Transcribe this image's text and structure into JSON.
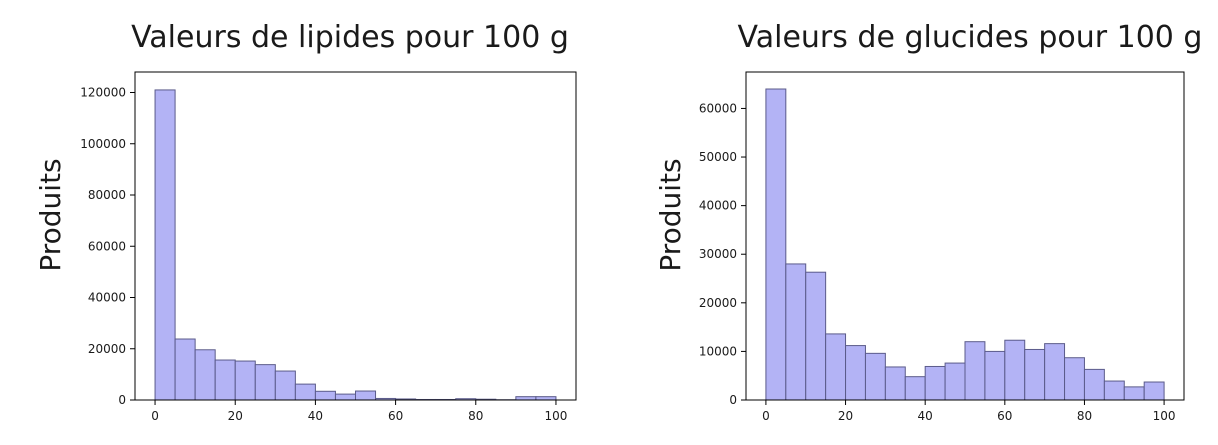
{
  "chart_data": [
    {
      "type": "bar",
      "title": "Valeurs de lipides pour 100 g",
      "xlabel": "",
      "ylabel": "Produits",
      "bin_width": 5,
      "x": [
        0,
        5,
        10,
        15,
        20,
        25,
        30,
        35,
        40,
        45,
        50,
        55,
        60,
        65,
        70,
        75,
        80,
        85,
        90,
        95
      ],
      "values": [
        121000,
        23800,
        19600,
        15600,
        15200,
        13800,
        11300,
        6200,
        3400,
        2300,
        3500,
        600,
        400,
        200,
        200,
        500,
        300,
        100,
        1300,
        1300
      ],
      "xlim": [
        -5,
        105
      ],
      "ylim": [
        0,
        128000
      ],
      "xticks": [
        0,
        20,
        40,
        60,
        80,
        100
      ],
      "yticks": [
        0,
        20000,
        40000,
        60000,
        80000,
        100000,
        120000
      ],
      "grid": false,
      "colors": {
        "bar_fill": "#b3b3f5",
        "bar_edge": "#5b5b8a"
      }
    },
    {
      "type": "bar",
      "title": "Valeurs de glucides pour 100 g",
      "xlabel": "",
      "ylabel": "Produits",
      "bin_width": 5,
      "x": [
        0,
        5,
        10,
        15,
        20,
        25,
        30,
        35,
        40,
        45,
        50,
        55,
        60,
        65,
        70,
        75,
        80,
        85,
        90,
        95
      ],
      "values": [
        64000,
        28000,
        26300,
        13600,
        11200,
        9600,
        6800,
        4800,
        6900,
        7600,
        12000,
        10000,
        12300,
        10400,
        11600,
        8700,
        6300,
        3900,
        2700,
        3700
      ],
      "xlim": [
        -5,
        105
      ],
      "ylim": [
        0,
        67500
      ],
      "xticks": [
        0,
        20,
        40,
        60,
        80,
        100
      ],
      "yticks": [
        0,
        10000,
        20000,
        30000,
        40000,
        50000,
        60000
      ],
      "grid": false,
      "colors": {
        "bar_fill": "#b3b3f5",
        "bar_edge": "#5b5b8a"
      }
    }
  ]
}
